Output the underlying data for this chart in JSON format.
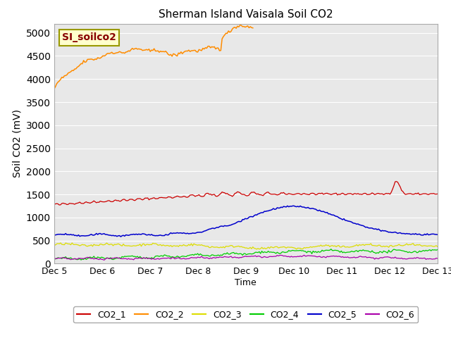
{
  "title": "Sherman Island Vaisala Soil CO2",
  "ylabel": "Soil CO2 (mV)",
  "xlabel": "Time",
  "fig_facecolor": "#ffffff",
  "axes_facecolor": "#e8e8e8",
  "ylim": [
    0,
    5200
  ],
  "yticks": [
    0,
    500,
    1000,
    1500,
    2000,
    2500,
    3000,
    3500,
    4000,
    4500,
    5000
  ],
  "xtick_labels": [
    "Dec 5",
    "Dec 6",
    "Dec 7",
    "Dec 8",
    "Dec 9",
    "Dec 10",
    "Dec 11",
    "Dec 12",
    "Dec 13"
  ],
  "line_colors": {
    "CO2_1": "#cc0000",
    "CO2_2": "#ff8c00",
    "CO2_3": "#dddd00",
    "CO2_4": "#00cc00",
    "CO2_5": "#0000cc",
    "CO2_6": "#aa00aa"
  },
  "annotation_box_text": "SI_soilco2",
  "annotation_box_color": "#ffffcc",
  "annotation_text_color": "#880000",
  "annotation_edge_color": "#999900"
}
